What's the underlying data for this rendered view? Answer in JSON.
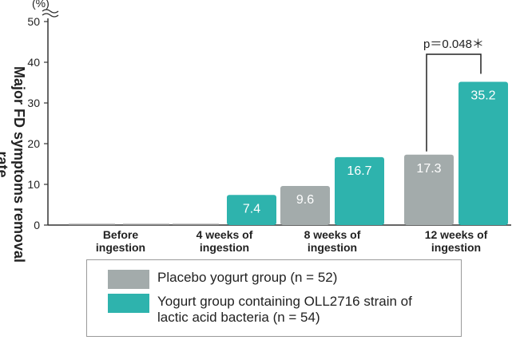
{
  "chart_data": {
    "type": "bar",
    "ylabel": "Major FD symptoms removal rate",
    "y_unit": "(%)",
    "ylim": [
      0,
      50
    ],
    "yticks": [
      0,
      10,
      20,
      30,
      40,
      50
    ],
    "categories": [
      "Before ingestion",
      "4 weeks of ingestion",
      "8 weeks of ingestion",
      "12 weeks of ingestion"
    ],
    "series": [
      {
        "name": "Placebo yogurt group (n = 52)",
        "color": "#a3abab",
        "values": [
          0,
          0,
          9.6,
          17.3
        ],
        "labels": [
          "",
          "",
          "9.6",
          "17.3"
        ]
      },
      {
        "name": "Yogurt group containing OLL2716 strain of lactic acid bacteria (n = 54)",
        "color": "#2eb3ad",
        "values": [
          0,
          7.4,
          16.7,
          35.2
        ],
        "labels": [
          "",
          "7.4",
          "16.7",
          "35.2"
        ]
      }
    ],
    "annotation": {
      "text": "p＝0.048＊",
      "category_index": 3
    },
    "axis_break": true,
    "grid": false,
    "legend_position": "bottom"
  },
  "legend": {
    "placebo_label": "Placebo yogurt group (n = 52)",
    "yogurt_label": "Yogurt group containing OLL2716 strain of lactic acid bacteria (n = 54)",
    "placebo_color": "#a3abab",
    "yogurt_color": "#2eb3ad"
  }
}
